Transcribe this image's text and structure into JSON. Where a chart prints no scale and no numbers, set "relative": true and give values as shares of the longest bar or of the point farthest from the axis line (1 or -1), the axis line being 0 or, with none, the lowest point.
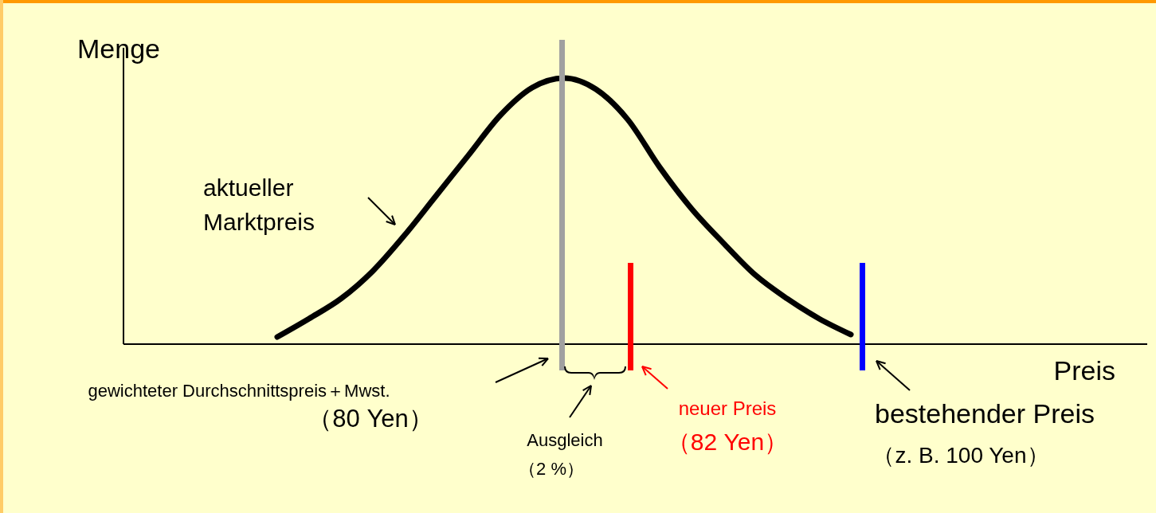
{
  "chart_data": {
    "type": "line",
    "relative": true,
    "xlabel": "Preis",
    "ylabel": "Menge",
    "categories": [
      null,
      null,
      null,
      null,
      null,
      null,
      null,
      null,
      null,
      null,
      null,
      null,
      null,
      null,
      null,
      null,
      null,
      null,
      null,
      null,
      null,
      null,
      null,
      null,
      null,
      null,
      null,
      null,
      null,
      null,
      null,
      null,
      null
    ],
    "series": [
      {
        "color": "#000000",
        "values": [
          null,
          null,
          null,
          null,
          null,
          0.027,
          0.096,
          0.171,
          0.275,
          0.41,
          0.56,
          0.71,
          0.86,
          0.964,
          1,
          0.958,
          0.844,
          0.665,
          0.509,
          0.38,
          0.26,
          0.171,
          0.096,
          0.036,
          null,
          null,
          null,
          null,
          null,
          null,
          null,
          null,
          null
        ]
      }
    ],
    "annotations": [
      "aktueller\nMarktpreis",
      "gewichteter Durchschnittspreis＋Mwst.\n（80 Yen）",
      "Ausgleich\n（2 %）",
      "neuer Preis\n（82 Yen）",
      "bestehender Preis\n（z. B. 100 Yen）"
    ],
    "line_style": "solid"
  }
}
